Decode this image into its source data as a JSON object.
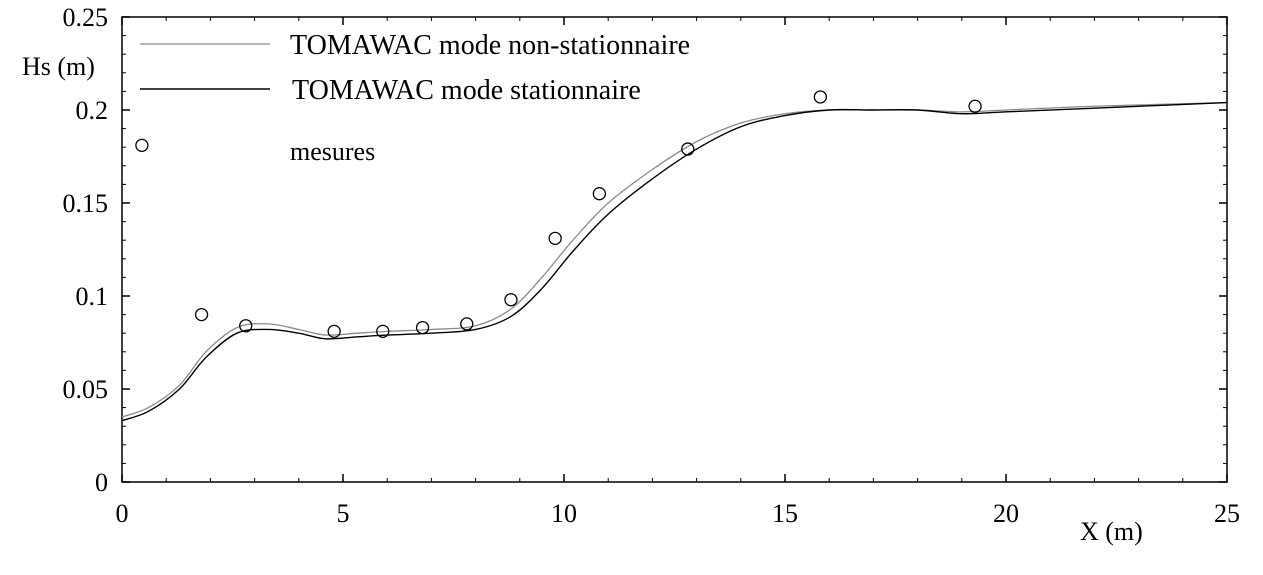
{
  "chart_data": {
    "type": "line",
    "xlabel": "X (m)",
    "ylabel": "Hs (m)",
    "xlim": [
      0,
      25
    ],
    "ylim": [
      0,
      0.25
    ],
    "x_ticks": [
      0,
      5,
      10,
      15,
      20,
      25
    ],
    "x_tick_labels": [
      "0",
      "5",
      "10",
      "15",
      "20",
      "25"
    ],
    "y_ticks": [
      0,
      0.05,
      0.1,
      0.15,
      0.2,
      0.25
    ],
    "y_tick_labels": [
      "0",
      "0.05",
      "0.1",
      "0.15",
      "0.2",
      "0.25"
    ],
    "grid": false,
    "legend_position": "top-left",
    "series": [
      {
        "name": "TOMAWAC mode non-stationnaire",
        "style": "line-gray",
        "x": [
          0,
          0.6,
          1.3,
          1.9,
          2.6,
          3.3,
          4,
          4.6,
          5.3,
          6,
          7,
          8,
          8.8,
          9.5,
          10.2,
          11,
          12,
          13,
          14,
          15,
          16,
          17,
          18,
          19,
          20,
          22,
          25
        ],
        "y": [
          0.035,
          0.04,
          0.052,
          0.07,
          0.083,
          0.085,
          0.082,
          0.079,
          0.08,
          0.081,
          0.082,
          0.084,
          0.093,
          0.11,
          0.13,
          0.15,
          0.168,
          0.183,
          0.193,
          0.198,
          0.2,
          0.2,
          0.2,
          0.199,
          0.2,
          0.202,
          0.204
        ]
      },
      {
        "name": "TOMAWAC mode stationnaire",
        "style": "line-black",
        "x": [
          0,
          0.6,
          1.3,
          1.9,
          2.6,
          3.3,
          4,
          4.6,
          5.3,
          6,
          7,
          8,
          8.8,
          9.5,
          10.2,
          11,
          12,
          13,
          14,
          15,
          16,
          17,
          18,
          19,
          20,
          22,
          25
        ],
        "y": [
          0.033,
          0.038,
          0.05,
          0.067,
          0.08,
          0.082,
          0.08,
          0.077,
          0.078,
          0.079,
          0.08,
          0.082,
          0.089,
          0.104,
          0.124,
          0.144,
          0.163,
          0.179,
          0.191,
          0.197,
          0.2,
          0.2,
          0.2,
          0.198,
          0.199,
          0.201,
          0.204
        ]
      },
      {
        "name": "mesures",
        "style": "markers-circle",
        "x": [
          0.45,
          1.8,
          2.8,
          4.8,
          5.9,
          6.8,
          7.8,
          8.8,
          9.8,
          10.8,
          12.8,
          15.8,
          19.3
        ],
        "y": [
          0.181,
          0.09,
          0.084,
          0.081,
          0.081,
          0.083,
          0.085,
          0.098,
          0.131,
          0.155,
          0.179,
          0.207,
          0.202
        ]
      }
    ]
  },
  "colors": {
    "axis": "#000000",
    "line_non_stationnaire": "#8a8a8a",
    "line_stationnaire": "#000000",
    "marker": "#000000",
    "background": "#ffffff"
  }
}
